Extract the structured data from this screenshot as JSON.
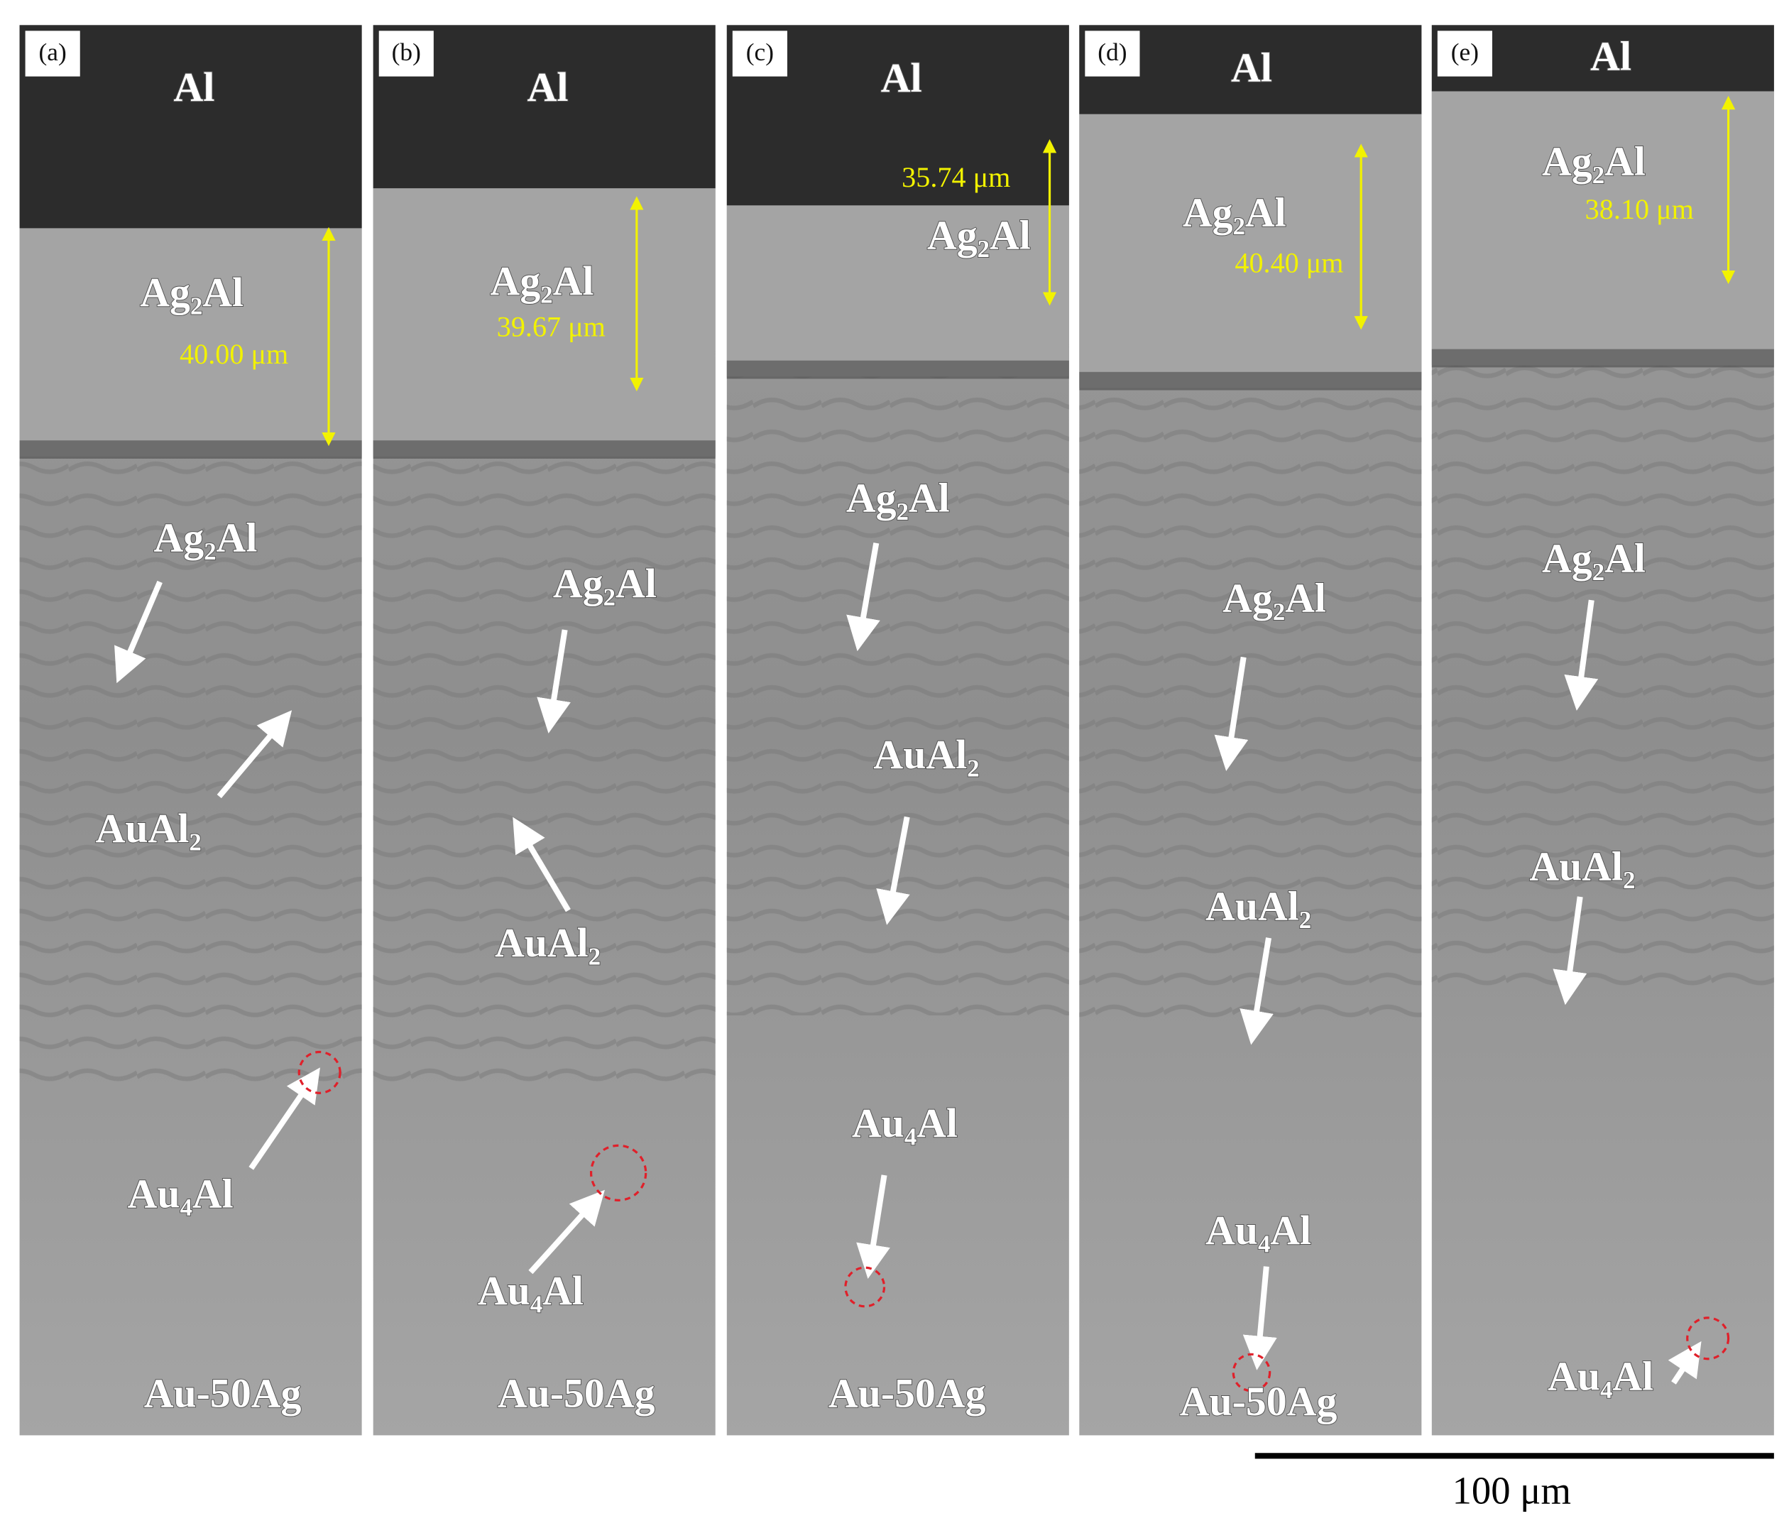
{
  "panels": [
    {
      "label": "(a)",
      "top_label": "Al",
      "measurement": "40.00 μm",
      "annotations": [
        "Ag₂Al",
        "Ag₂Al",
        "AuAl₂",
        "Au₄Al"
      ],
      "bottom_label": "Au-50Ag"
    },
    {
      "label": "(b)",
      "top_label": "Al",
      "measurement": "39.67 μm",
      "annotations": [
        "Ag₂Al",
        "Ag₂Al",
        "AuAl₂",
        "Au₄Al"
      ],
      "bottom_label": "Au-50Ag"
    },
    {
      "label": "(c)",
      "top_label": "Al",
      "measurement": "35.74 μm",
      "annotations": [
        "Ag₂Al",
        "Ag₂Al",
        "AuAl₂",
        "Au₄Al"
      ],
      "bottom_label": "Au-50Ag"
    },
    {
      "label": "(d)",
      "top_label": "Al",
      "measurement": "40.40 μm",
      "annotations": [
        "Ag₂Al",
        "Ag₂Al",
        "AuAl₂",
        "Au₄Al"
      ],
      "bottom_label": "Au-50Ag"
    },
    {
      "label": "(e)",
      "top_label": "Al",
      "measurement": "38.10 μm",
      "annotations": [
        "Ag₂Al",
        "Ag₂Al",
        "AuAl₂",
        "Au₄Al"
      ]
    }
  ],
  "scale_bar": {
    "label": "100 μm"
  }
}
